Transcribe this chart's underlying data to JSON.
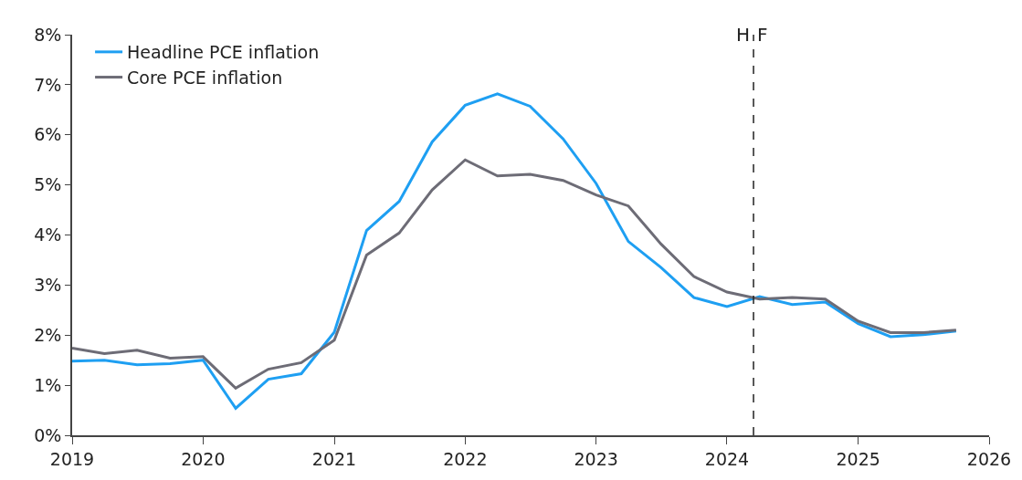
{
  "chart_data": {
    "type": "line",
    "x": [
      "2019-01",
      "2019-04",
      "2019-07",
      "2019-10",
      "2020-01",
      "2020-04",
      "2020-07",
      "2020-10",
      "2021-01",
      "2021-04",
      "2021-07",
      "2021-10",
      "2022-01",
      "2022-04",
      "2022-07",
      "2022-10",
      "2023-01",
      "2023-04",
      "2023-07",
      "2023-10",
      "2024-01",
      "2024-04",
      "2024-07",
      "2024-10",
      "2025-01",
      "2025-04",
      "2025-07",
      "2025-10"
    ],
    "series": [
      {
        "name": "Headline PCE inflation",
        "color": "#1e9ff2",
        "values": [
          1.48,
          1.5,
          1.41,
          1.43,
          1.5,
          0.54,
          1.12,
          1.23,
          2.06,
          4.09,
          4.67,
          5.86,
          6.59,
          6.82,
          6.57,
          5.92,
          5.03,
          3.87,
          3.35,
          2.75,
          2.57,
          2.77,
          2.61,
          2.66,
          2.23,
          1.97,
          2.01,
          2.08
        ]
      },
      {
        "name": "Core PCE inflation",
        "color": "#6d6c76",
        "values": [
          1.74,
          1.63,
          1.7,
          1.54,
          1.57,
          0.94,
          1.32,
          1.45,
          1.9,
          3.6,
          4.04,
          4.9,
          5.5,
          5.18,
          5.21,
          5.09,
          4.8,
          4.58,
          3.82,
          3.17,
          2.86,
          2.72,
          2.75,
          2.72,
          2.28,
          2.05,
          2.05,
          2.1
        ]
      }
    ],
    "xlim": [
      "2019-01-01",
      "2026-01-01"
    ],
    "xticks": [
      {
        "value": "2019",
        "label": "2019"
      },
      {
        "value": "2020",
        "label": "2020"
      },
      {
        "value": "2021",
        "label": "2021"
      },
      {
        "value": "2022",
        "label": "2022"
      },
      {
        "value": "2023",
        "label": "2023"
      },
      {
        "value": "2024",
        "label": "2024"
      },
      {
        "value": "2025",
        "label": "2025"
      },
      {
        "value": "2026",
        "label": "2026"
      }
    ],
    "ylim": [
      0,
      8
    ],
    "yticks": [
      {
        "value": 0,
        "label": "0%"
      },
      {
        "value": 1,
        "label": "1%"
      },
      {
        "value": 2,
        "label": "2%"
      },
      {
        "value": 3,
        "label": "3%"
      },
      {
        "value": 4,
        "label": "4%"
      },
      {
        "value": 5,
        "label": "5%"
      },
      {
        "value": 6,
        "label": "6%"
      },
      {
        "value": 7,
        "label": "7%"
      },
      {
        "value": 8,
        "label": "8%"
      }
    ],
    "ref_lines": [
      {
        "axis": "x",
        "value": "2024-03-15",
        "color": "#222222",
        "line_style": "dashed"
      }
    ],
    "annotations": [
      "H",
      "F"
    ],
    "legend": "top left",
    "marker": "none",
    "line_style": "solid"
  }
}
